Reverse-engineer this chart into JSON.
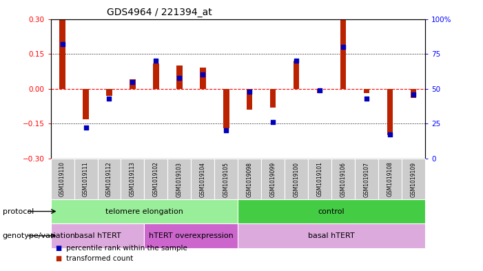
{
  "title": "GDS4964 / 221394_at",
  "samples": [
    "GSM1019110",
    "GSM1019111",
    "GSM1019112",
    "GSM1019113",
    "GSM1019102",
    "GSM1019103",
    "GSM1019104",
    "GSM1019105",
    "GSM1019098",
    "GSM1019099",
    "GSM1019100",
    "GSM1019101",
    "GSM1019106",
    "GSM1019107",
    "GSM1019108",
    "GSM1019109"
  ],
  "transformed_count": [
    0.3,
    -0.13,
    -0.03,
    0.04,
    0.11,
    0.1,
    0.09,
    -0.17,
    -0.09,
    -0.08,
    0.12,
    -0.02,
    0.3,
    -0.02,
    -0.2,
    -0.04
  ],
  "percentile_rank": [
    82,
    22,
    43,
    55,
    70,
    58,
    60,
    20,
    48,
    26,
    70,
    49,
    80,
    43,
    17,
    46
  ],
  "ylim_left": [
    -0.3,
    0.3
  ],
  "ylim_right": [
    0,
    100
  ],
  "yticks_left": [
    -0.3,
    -0.15,
    0.0,
    0.15,
    0.3
  ],
  "yticks_right": [
    0,
    25,
    50,
    75,
    100
  ],
  "ytick_labels_right": [
    "0",
    "25",
    "50",
    "75",
    "100%"
  ],
  "dotted_lines": [
    -0.15,
    0.15
  ],
  "protocol_groups": [
    {
      "label": "telomere elongation",
      "start": 0,
      "end": 7,
      "color": "#99EE99"
    },
    {
      "label": "control",
      "start": 8,
      "end": 15,
      "color": "#44CC44"
    }
  ],
  "genotype_groups": [
    {
      "label": "basal hTERT",
      "start": 0,
      "end": 3,
      "color": "#DDAADD"
    },
    {
      "label": "hTERT overexpression",
      "start": 4,
      "end": 7,
      "color": "#CC66CC"
    },
    {
      "label": "basal hTERT",
      "start": 8,
      "end": 15,
      "color": "#DDAADD"
    }
  ],
  "bar_color": "#BB2200",
  "dot_color": "#0000BB",
  "bg_color": "#FFFFFF",
  "tick_bg_color": "#CCCCCC",
  "protocol_label": "protocol",
  "genotype_label": "genotype/variation",
  "legend_items": [
    {
      "label": "transformed count",
      "color": "#BB2200"
    },
    {
      "label": "percentile rank within the sample",
      "color": "#0000BB"
    }
  ]
}
